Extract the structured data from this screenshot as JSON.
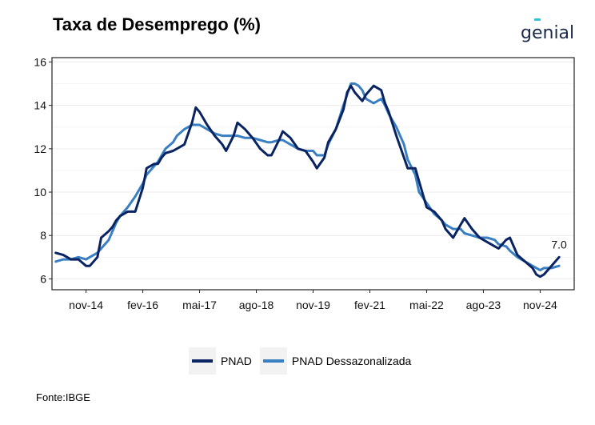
{
  "title": "Taxa de Desemprego (%)",
  "brand": {
    "name": "genial",
    "color_text": "#1b2a4a",
    "color_accent": "#2ec4d6"
  },
  "source": "Fonte:IBGE",
  "chart_data": {
    "type": "line",
    "title": "Taxa de Desemprego (%)",
    "xlabel": "",
    "ylabel": "",
    "ylim": [
      5.5,
      16.2
    ],
    "yticks": [
      6,
      8,
      10,
      12,
      14,
      16
    ],
    "xlim": [
      "2014-02",
      "2025-08"
    ],
    "xticks": [
      {
        "date": "2014-11",
        "label": "nov-14"
      },
      {
        "date": "2016-02",
        "label": "fev-16"
      },
      {
        "date": "2017-05",
        "label": "mai-17"
      },
      {
        "date": "2018-08",
        "label": "ago-18"
      },
      {
        "date": "2019-11",
        "label": "nov-19"
      },
      {
        "date": "2021-02",
        "label": "fev-21"
      },
      {
        "date": "2022-05",
        "label": "mai-22"
      },
      {
        "date": "2023-08",
        "label": "ago-23"
      },
      {
        "date": "2024-11",
        "label": "nov-24"
      }
    ],
    "grid": true,
    "legend_position": "bottom",
    "annotation": {
      "text": "7.0",
      "date": "2025-04",
      "value": 7.0
    },
    "series": [
      {
        "name": "PNAD",
        "color": "#0a2463",
        "points": [
          [
            "2014-03",
            7.2
          ],
          [
            "2014-05",
            7.1
          ],
          [
            "2014-07",
            6.9
          ],
          [
            "2014-09",
            6.9
          ],
          [
            "2014-11",
            6.6
          ],
          [
            "2014-12",
            6.6
          ],
          [
            "2015-02",
            7.0
          ],
          [
            "2015-03",
            7.9
          ],
          [
            "2015-05",
            8.2
          ],
          [
            "2015-06",
            8.4
          ],
          [
            "2015-07",
            8.7
          ],
          [
            "2015-08",
            8.9
          ],
          [
            "2015-10",
            9.1
          ],
          [
            "2015-12",
            9.1
          ],
          [
            "2016-02",
            10.2
          ],
          [
            "2016-03",
            11.1
          ],
          [
            "2016-05",
            11.3
          ],
          [
            "2016-06",
            11.3
          ],
          [
            "2016-07",
            11.6
          ],
          [
            "2016-08",
            11.8
          ],
          [
            "2016-10",
            11.9
          ],
          [
            "2016-11",
            12.0
          ],
          [
            "2017-01",
            12.2
          ],
          [
            "2017-03",
            13.2
          ],
          [
            "2017-04",
            13.9
          ],
          [
            "2017-05",
            13.7
          ],
          [
            "2017-07",
            13.1
          ],
          [
            "2017-09",
            12.6
          ],
          [
            "2017-11",
            12.2
          ],
          [
            "2017-12",
            11.9
          ],
          [
            "2018-02",
            12.6
          ],
          [
            "2018-03",
            13.2
          ],
          [
            "2018-05",
            12.9
          ],
          [
            "2018-07",
            12.5
          ],
          [
            "2018-09",
            12.0
          ],
          [
            "2018-11",
            11.7
          ],
          [
            "2018-12",
            11.7
          ],
          [
            "2019-02",
            12.4
          ],
          [
            "2019-03",
            12.8
          ],
          [
            "2019-05",
            12.5
          ],
          [
            "2019-07",
            12.0
          ],
          [
            "2019-09",
            11.9
          ],
          [
            "2019-11",
            11.4
          ],
          [
            "2019-12",
            11.1
          ],
          [
            "2020-02",
            11.6
          ],
          [
            "2020-03",
            12.3
          ],
          [
            "2020-05",
            12.9
          ],
          [
            "2020-07",
            13.8
          ],
          [
            "2020-08",
            14.6
          ],
          [
            "2020-09",
            14.9
          ],
          [
            "2020-10",
            14.6
          ],
          [
            "2020-11",
            14.4
          ],
          [
            "2020-12",
            14.2
          ],
          [
            "2021-01",
            14.5
          ],
          [
            "2021-03",
            14.9
          ],
          [
            "2021-05",
            14.7
          ],
          [
            "2021-06",
            14.1
          ],
          [
            "2021-07",
            13.7
          ],
          [
            "2021-09",
            12.6
          ],
          [
            "2021-11",
            11.6
          ],
          [
            "2021-12",
            11.1
          ],
          [
            "2022-02",
            11.1
          ],
          [
            "2022-03",
            10.5
          ],
          [
            "2022-05",
            9.3
          ],
          [
            "2022-07",
            9.1
          ],
          [
            "2022-09",
            8.7
          ],
          [
            "2022-10",
            8.3
          ],
          [
            "2022-12",
            7.9
          ],
          [
            "2023-02",
            8.5
          ],
          [
            "2023-03",
            8.8
          ],
          [
            "2023-05",
            8.3
          ],
          [
            "2023-07",
            7.9
          ],
          [
            "2023-09",
            7.7
          ],
          [
            "2023-11",
            7.5
          ],
          [
            "2023-12",
            7.4
          ],
          [
            "2024-02",
            7.8
          ],
          [
            "2024-03",
            7.9
          ],
          [
            "2024-05",
            7.1
          ],
          [
            "2024-07",
            6.8
          ],
          [
            "2024-09",
            6.5
          ],
          [
            "2024-10",
            6.2
          ],
          [
            "2024-11",
            6.1
          ],
          [
            "2024-12",
            6.2
          ],
          [
            "2025-02",
            6.6
          ],
          [
            "2025-04",
            7.0
          ]
        ]
      },
      {
        "name": "PNAD Dessazonalizada",
        "color": "#3a7fc1",
        "points": [
          [
            "2014-03",
            6.8
          ],
          [
            "2014-05",
            6.9
          ],
          [
            "2014-07",
            6.9
          ],
          [
            "2014-09",
            7.0
          ],
          [
            "2014-11",
            6.9
          ],
          [
            "2014-12",
            7.0
          ],
          [
            "2015-02",
            7.2
          ],
          [
            "2015-03",
            7.4
          ],
          [
            "2015-05",
            7.8
          ],
          [
            "2015-06",
            8.2
          ],
          [
            "2015-07",
            8.6
          ],
          [
            "2015-08",
            8.9
          ],
          [
            "2015-10",
            9.3
          ],
          [
            "2015-12",
            9.8
          ],
          [
            "2016-02",
            10.4
          ],
          [
            "2016-03",
            10.8
          ],
          [
            "2016-05",
            11.2
          ],
          [
            "2016-06",
            11.4
          ],
          [
            "2016-07",
            11.7
          ],
          [
            "2016-08",
            12.0
          ],
          [
            "2016-10",
            12.3
          ],
          [
            "2016-11",
            12.6
          ],
          [
            "2017-01",
            12.9
          ],
          [
            "2017-03",
            13.1
          ],
          [
            "2017-04",
            13.1
          ],
          [
            "2017-05",
            13.1
          ],
          [
            "2017-07",
            12.9
          ],
          [
            "2017-09",
            12.7
          ],
          [
            "2017-11",
            12.6
          ],
          [
            "2017-12",
            12.6
          ],
          [
            "2018-02",
            12.6
          ],
          [
            "2018-03",
            12.6
          ],
          [
            "2018-05",
            12.5
          ],
          [
            "2018-07",
            12.5
          ],
          [
            "2018-09",
            12.4
          ],
          [
            "2018-11",
            12.3
          ],
          [
            "2018-12",
            12.3
          ],
          [
            "2019-02",
            12.4
          ],
          [
            "2019-03",
            12.4
          ],
          [
            "2019-05",
            12.2
          ],
          [
            "2019-07",
            12.0
          ],
          [
            "2019-09",
            11.9
          ],
          [
            "2019-11",
            11.9
          ],
          [
            "2019-12",
            11.7
          ],
          [
            "2020-02",
            11.7
          ],
          [
            "2020-03",
            12.2
          ],
          [
            "2020-05",
            12.9
          ],
          [
            "2020-07",
            14.0
          ],
          [
            "2020-08",
            14.5
          ],
          [
            "2020-09",
            15.0
          ],
          [
            "2020-10",
            15.0
          ],
          [
            "2020-11",
            14.9
          ],
          [
            "2020-12",
            14.7
          ],
          [
            "2021-01",
            14.3
          ],
          [
            "2021-03",
            14.1
          ],
          [
            "2021-05",
            14.3
          ],
          [
            "2021-06",
            14.0
          ],
          [
            "2021-07",
            13.6
          ],
          [
            "2021-09",
            13.0
          ],
          [
            "2021-11",
            12.2
          ],
          [
            "2021-12",
            11.5
          ],
          [
            "2022-02",
            10.8
          ],
          [
            "2022-03",
            10.0
          ],
          [
            "2022-05",
            9.5
          ],
          [
            "2022-07",
            9.0
          ],
          [
            "2022-09",
            8.7
          ],
          [
            "2022-10",
            8.5
          ],
          [
            "2022-12",
            8.3
          ],
          [
            "2023-02",
            8.3
          ],
          [
            "2023-03",
            8.1
          ],
          [
            "2023-05",
            8.0
          ],
          [
            "2023-07",
            7.9
          ],
          [
            "2023-09",
            7.9
          ],
          [
            "2023-11",
            7.8
          ],
          [
            "2023-12",
            7.6
          ],
          [
            "2024-02",
            7.5
          ],
          [
            "2024-03",
            7.3
          ],
          [
            "2024-05",
            7.0
          ],
          [
            "2024-07",
            6.8
          ],
          [
            "2024-09",
            6.6
          ],
          [
            "2024-10",
            6.5
          ],
          [
            "2024-11",
            6.4
          ],
          [
            "2024-12",
            6.5
          ],
          [
            "2025-02",
            6.5
          ],
          [
            "2025-04",
            6.6
          ]
        ]
      }
    ]
  }
}
